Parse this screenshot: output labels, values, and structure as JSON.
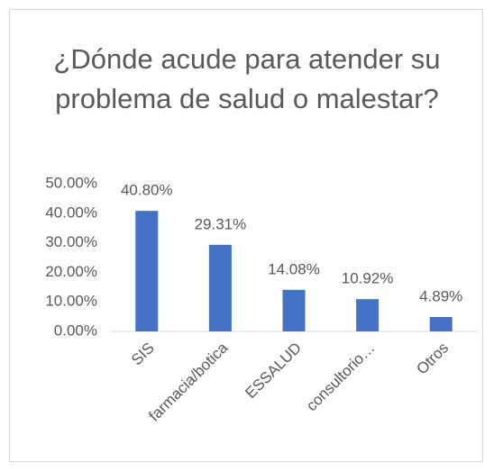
{
  "chart_data": {
    "type": "bar",
    "title": "¿Dónde acude para atender su problema de salud o malestar?",
    "categories": [
      "SIS",
      "farmacia/botica",
      "ESSALUD",
      "consultorio…",
      "Otros"
    ],
    "values": [
      40.8,
      29.31,
      14.08,
      10.92,
      4.89
    ],
    "value_labels": [
      "40.80%",
      "29.31%",
      "14.08%",
      "10.92%",
      "4.89%"
    ],
    "color": "#4472c4",
    "ylim": [
      0,
      50
    ],
    "yticks": [
      {
        "value": 0,
        "label": "0.00%"
      },
      {
        "value": 10,
        "label": "10.00%"
      },
      {
        "value": 20,
        "label": "20.00%"
      },
      {
        "value": 30,
        "label": "30.00%"
      },
      {
        "value": 40,
        "label": "40.00%"
      },
      {
        "value": 50,
        "label": "50.00%"
      }
    ],
    "grid": false
  }
}
